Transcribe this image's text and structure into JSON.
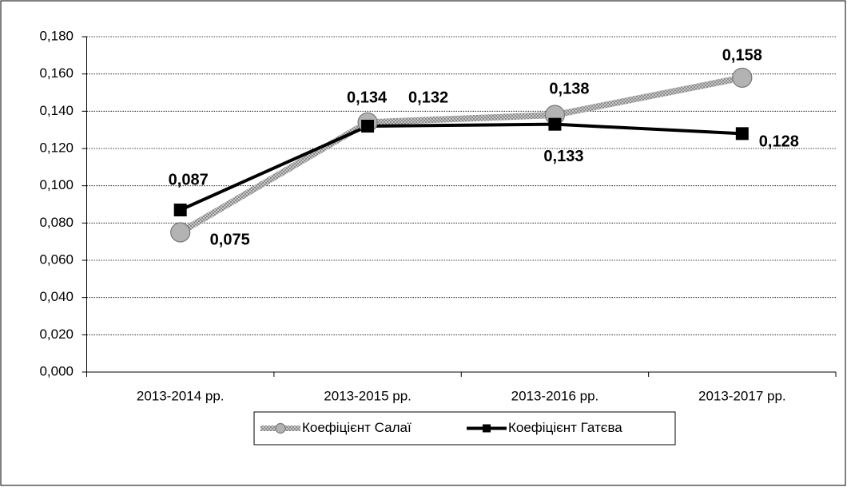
{
  "chart_data": {
    "type": "line",
    "categories": [
      "2013-2014 рр.",
      "2013-2015 рр.",
      "2013-2016 рр.",
      "2013-2017 рр."
    ],
    "series": [
      {
        "name": "Коефіцієнт Салаї",
        "color": "#b3b3b3",
        "marker": "circle",
        "values": [
          0.075,
          0.134,
          0.138,
          0.158
        ],
        "value_labels": [
          "0,075",
          "0,134",
          "0,138",
          "0,158"
        ]
      },
      {
        "name": "Коефіцієнт Гатєва",
        "color": "#000000",
        "marker": "square",
        "values": [
          0.087,
          0.132,
          0.133,
          0.128
        ],
        "value_labels": [
          "0,087",
          "0,132",
          "0,133",
          "0,128"
        ]
      }
    ],
    "ylim": [
      0,
      0.18
    ],
    "yticks": [
      {
        "value": 0,
        "label": "0,000"
      },
      {
        "value": 0.02,
        "label": "0,020"
      },
      {
        "value": 0.04,
        "label": "0,040"
      },
      {
        "value": 0.06,
        "label": "0,060"
      },
      {
        "value": 0.08,
        "label": "0,080"
      },
      {
        "value": 0.1,
        "label": "0,100"
      },
      {
        "value": 0.12,
        "label": "0,120"
      },
      {
        "value": 0.14,
        "label": "0,140"
      },
      {
        "value": 0.16,
        "label": "0,160"
      },
      {
        "value": 0.18,
        "label": "0,180"
      }
    ],
    "grid": true,
    "legend": "bottom"
  }
}
